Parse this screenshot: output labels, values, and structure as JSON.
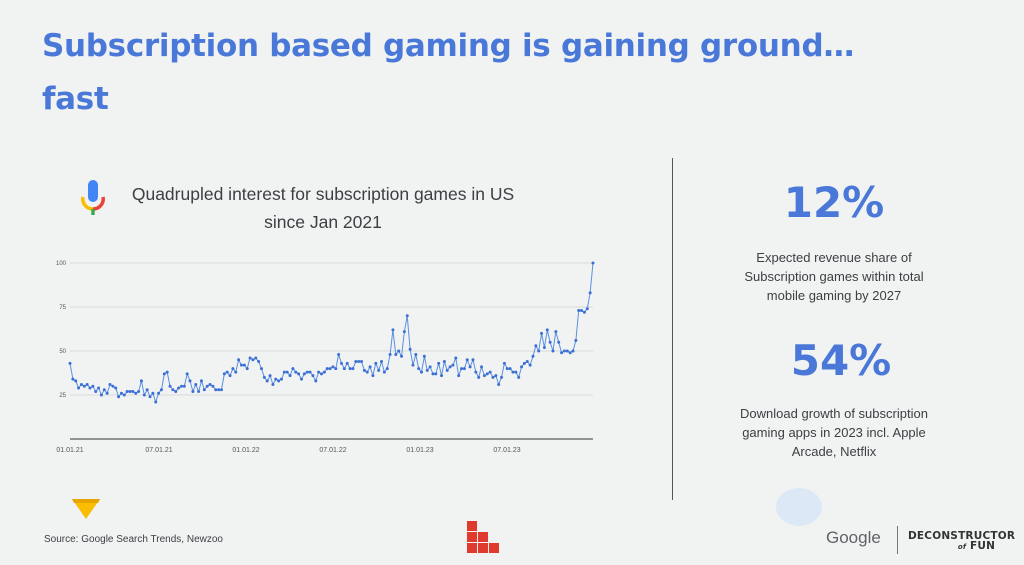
{
  "title": "Subscription based gaming is gaining ground…\nfast",
  "title_line1": "Subscription based gaming is gaining ground…",
  "title_line2": "fast",
  "chart_caption_line1": "Quadrupled interest for subscription games in US",
  "chart_caption_line2": "since Jan 2021",
  "stats": [
    {
      "value": "12%",
      "description_lines": [
        "Expected revenue share of",
        "Subscription games within total",
        "mobile gaming by 2027"
      ]
    },
    {
      "value": "54%",
      "description_lines": [
        "Download growth of subscription",
        "gaming apps in 2023 incl. Apple",
        "Arcade, Netflix"
      ]
    }
  ],
  "source": "Source:  Google Search Trends, Newzoo",
  "logos": {
    "google": "Google",
    "dof_main": "DECONSTRUCTOR",
    "dof_of": "of",
    "dof_fun": "FUN"
  },
  "icons": [
    "mic-icon",
    "google-ads-triangle-icon",
    "red-squares-logo-icon"
  ],
  "colors": {
    "accent": "#4a78d8",
    "line": "#5a8fe0",
    "point": "#3b6fd4"
  },
  "chart_data": {
    "type": "line",
    "title": "Quadrupled interest for subscription games in US since Jan 2021",
    "xlabel": "",
    "ylabel": "",
    "ylim": [
      0,
      100
    ],
    "y_ticks": [
      "25",
      "50",
      "75",
      "100"
    ],
    "x_tick_labels": [
      "01.01.21",
      "07.01.21",
      "01.01.22",
      "07.01.22",
      "01.01.23",
      "07.01.23"
    ],
    "grid": true,
    "series": [
      {
        "name": "",
        "values": [
          43,
          34,
          33,
          29,
          31,
          30,
          31,
          29,
          30,
          27,
          29,
          25,
          28,
          26,
          31,
          30,
          29,
          24,
          26,
          25,
          27,
          27,
          27,
          26,
          27,
          33,
          25,
          28,
          24,
          26,
          21,
          26,
          28,
          37,
          38,
          30,
          28,
          27,
          29,
          30,
          30,
          37,
          33,
          27,
          31,
          27,
          33,
          28,
          30,
          31,
          30,
          28,
          28,
          28,
          37,
          38,
          36,
          40,
          38,
          45,
          42,
          42,
          40,
          46,
          45,
          46,
          44,
          40,
          35,
          33,
          36,
          31,
          34,
          33,
          34,
          38,
          38,
          36,
          40,
          38,
          37,
          34,
          37,
          38,
          38,
          36,
          33,
          38,
          37,
          38,
          40,
          40,
          41,
          40,
          48,
          43,
          40,
          43,
          40,
          40,
          44,
          44,
          44,
          39,
          38,
          41,
          36,
          43,
          39,
          44,
          38,
          40,
          48,
          62,
          48,
          50,
          47,
          61,
          70,
          51,
          42,
          48,
          40,
          38,
          47,
          39,
          41,
          37,
          37,
          43,
          36,
          44,
          39,
          41,
          42,
          46,
          36,
          40,
          40,
          45,
          41,
          45,
          38,
          35,
          41,
          36,
          37,
          38,
          35,
          36,
          31,
          35,
          43,
          40,
          40,
          38,
          38,
          35,
          41,
          43,
          44,
          42,
          47,
          53,
          50,
          60,
          52,
          62,
          55,
          50,
          61,
          55,
          49,
          50,
          50,
          49,
          50,
          56,
          73,
          73,
          72,
          74,
          83,
          100
        ]
      }
    ]
  }
}
